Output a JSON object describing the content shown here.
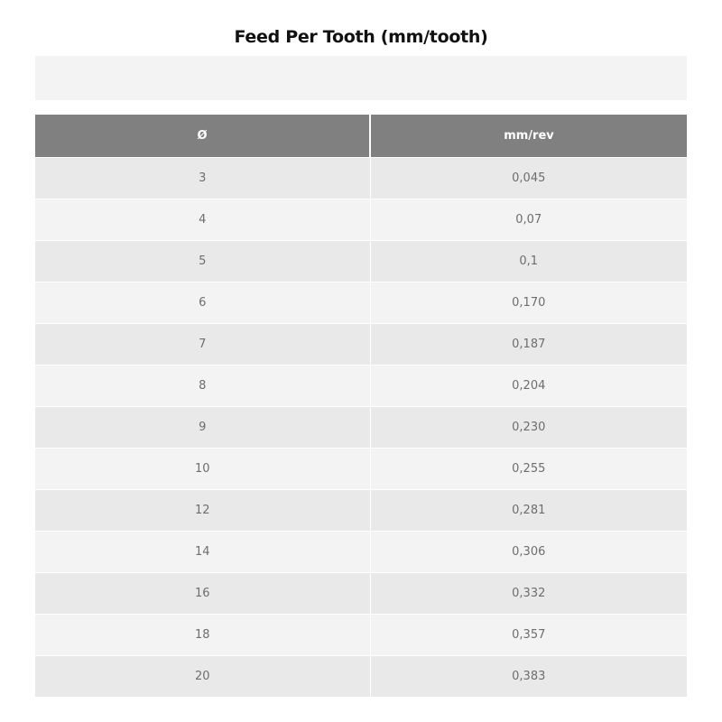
{
  "title": "Feed Per Tooth (mm/tooth)",
  "table": {
    "headers": [
      "Ø",
      "mm/rev"
    ],
    "rows": [
      [
        "3",
        "0,045"
      ],
      [
        "4",
        "0,07"
      ],
      [
        "5",
        "0,1"
      ],
      [
        "6",
        "0,170"
      ],
      [
        "7",
        "0,187"
      ],
      [
        "8",
        "0,204"
      ],
      [
        "9",
        "0,230"
      ],
      [
        "10",
        "0,255"
      ],
      [
        "12",
        "0,281"
      ],
      [
        "14",
        "0,306"
      ],
      [
        "16",
        "0,332"
      ],
      [
        "18",
        "0,357"
      ],
      [
        "20",
        "0,383"
      ]
    ]
  },
  "colors": {
    "header_bg": "#808080",
    "row_odd": "#e9e9e9",
    "row_even": "#f3f3f3"
  }
}
